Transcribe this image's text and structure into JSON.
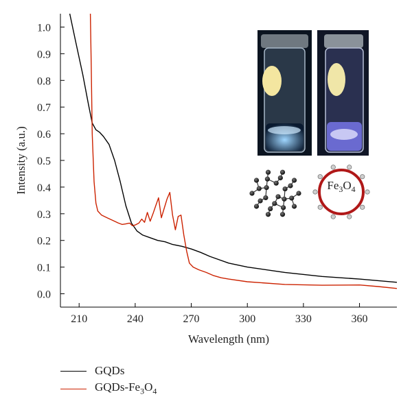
{
  "chart_data": {
    "type": "line",
    "title": "",
    "xlabel": "Wavelength (nm)",
    "ylabel": "Intensity (a.u.)",
    "xlim": [
      200,
      380
    ],
    "ylim": [
      -0.05,
      1.05
    ],
    "x_ticks": [
      210,
      240,
      270,
      300,
      330,
      360
    ],
    "y_ticks": [
      0.0,
      0.1,
      0.2,
      0.3,
      0.4,
      0.5,
      0.6,
      0.7,
      0.8,
      0.9,
      1.0
    ],
    "y_tick_labels": [
      "0.0",
      "0.1",
      "0.2",
      "0.3",
      "0.4",
      "0.5",
      "0.6",
      "0.7",
      "0.8",
      "0.9",
      "1.0"
    ],
    "grid": false,
    "legend_position": "bottom-left, below plot",
    "series": [
      {
        "name": "GQDs",
        "color": "#000000",
        "x": [
          205,
          208,
          212,
          215,
          217,
          219,
          221,
          223,
          226,
          229,
          232,
          235,
          238,
          241,
          244,
          248,
          252,
          256,
          260,
          265,
          270,
          275,
          280,
          290,
          300,
          320,
          340,
          360,
          380
        ],
        "y": [
          1.05,
          0.95,
          0.82,
          0.71,
          0.64,
          0.615,
          0.605,
          0.59,
          0.56,
          0.5,
          0.42,
          0.33,
          0.265,
          0.235,
          0.22,
          0.21,
          0.2,
          0.195,
          0.185,
          0.178,
          0.168,
          0.155,
          0.14,
          0.115,
          0.1,
          0.08,
          0.065,
          0.055,
          0.043
        ]
      },
      {
        "name": "GQDs-Fe3O4",
        "color": "#cc2200",
        "x": [
          216,
          216.5,
          217,
          218,
          219,
          220,
          222,
          225,
          228,
          231,
          233,
          235,
          237,
          238.5,
          240,
          242,
          243.5,
          245,
          246.5,
          248,
          249.5,
          251,
          252.5,
          254,
          255.5,
          257,
          258.5,
          260,
          261.5,
          263,
          264.5,
          266,
          267.5,
          269,
          271,
          274,
          278,
          282,
          286,
          290,
          300,
          320,
          340,
          360,
          370,
          380
        ],
        "y": [
          1.05,
          0.85,
          0.6,
          0.42,
          0.34,
          0.31,
          0.295,
          0.285,
          0.275,
          0.265,
          0.26,
          0.262,
          0.265,
          0.255,
          0.258,
          0.265,
          0.28,
          0.268,
          0.305,
          0.272,
          0.3,
          0.33,
          0.36,
          0.285,
          0.32,
          0.355,
          0.38,
          0.295,
          0.24,
          0.29,
          0.295,
          0.22,
          0.16,
          0.115,
          0.1,
          0.09,
          0.08,
          0.068,
          0.06,
          0.055,
          0.045,
          0.035,
          0.032,
          0.033,
          0.027,
          0.02
        ]
      }
    ]
  },
  "legend": [
    {
      "label": "GQDs",
      "color": "#000000"
    },
    {
      "label": "GQDs-Fe3O4",
      "color": "#cc2200"
    }
  ],
  "inset": {
    "photo_vials": [
      "vial-left-photo",
      "vial-right-photo"
    ],
    "fe3o4_label": "Fe3O4"
  }
}
